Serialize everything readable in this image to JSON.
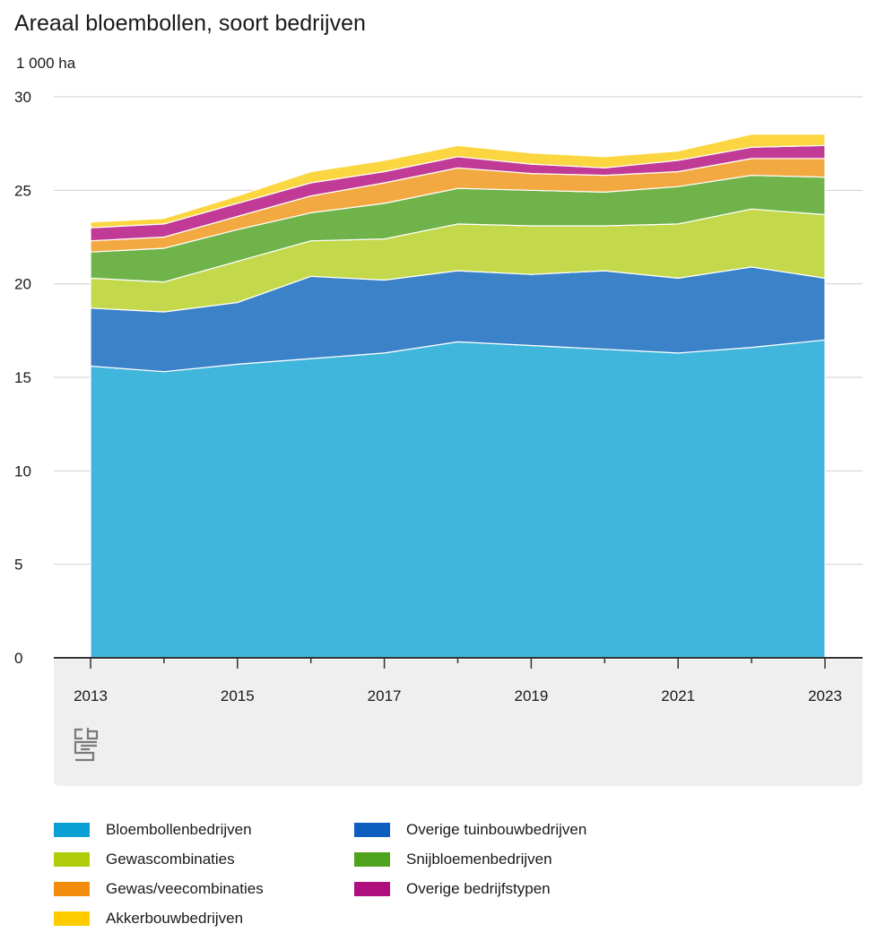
{
  "chart_data": {
    "type": "area",
    "stacked": true,
    "title": "Areaal bloembollen, soort bedrijven",
    "ylabel": "1 000 ha",
    "ylim": [
      0,
      30
    ],
    "yticks": [
      "0",
      "5",
      "10",
      "15",
      "20",
      "25",
      "30"
    ],
    "x": [
      2013,
      2014,
      2015,
      2016,
      2017,
      2018,
      2019,
      2020,
      2021,
      2022,
      2023
    ],
    "xticks": [
      "2013",
      "2015",
      "2017",
      "2019",
      "2021",
      "2023"
    ],
    "grid": true,
    "legend_position": "bottom",
    "series": [
      {
        "name": "Bloembollenbedrijven",
        "color": "#41b6dc",
        "legend_color": "#0ba0d4",
        "values": [
          15.6,
          15.3,
          15.7,
          16.0,
          16.3,
          16.9,
          16.7,
          16.5,
          16.3,
          16.6,
          17.0
        ]
      },
      {
        "name": "Overige tuinbouwbedrijven",
        "color": "#3b82c8",
        "legend_color": "#0d5fbf",
        "values": [
          3.1,
          3.2,
          3.3,
          4.4,
          3.9,
          3.8,
          3.8,
          4.2,
          4.0,
          4.3,
          3.3
        ]
      },
      {
        "name": "Gewascombinaties",
        "color": "#c3d84a",
        "legend_color": "#b0cc0b",
        "values": [
          1.6,
          1.6,
          2.2,
          1.9,
          2.2,
          2.5,
          2.6,
          2.4,
          2.9,
          3.1,
          3.4
        ]
      },
      {
        "name": "Snijbloemenbedrijven",
        "color": "#6fb34a",
        "legend_color": "#4ea21c",
        "values": [
          1.4,
          1.8,
          1.7,
          1.5,
          1.9,
          1.9,
          1.9,
          1.8,
          2.0,
          1.8,
          2.0
        ]
      },
      {
        "name": "Gewas/veecombinaties",
        "color": "#f3a941",
        "legend_color": "#f28c0f",
        "values": [
          0.6,
          0.6,
          0.7,
          0.9,
          1.1,
          1.1,
          0.9,
          0.9,
          0.8,
          0.9,
          1.0
        ]
      },
      {
        "name": "Overige bedrijfstypen",
        "color": "#c13b96",
        "legend_color": "#ae0f7d",
        "values": [
          0.7,
          0.7,
          0.7,
          0.7,
          0.6,
          0.6,
          0.5,
          0.4,
          0.6,
          0.6,
          0.7
        ]
      },
      {
        "name": "Akkerbouwbedrijven",
        "color": "#fcd640",
        "legend_color": "#ffcc00",
        "values": [
          0.3,
          0.3,
          0.4,
          0.6,
          0.6,
          0.6,
          0.6,
          0.6,
          0.5,
          0.7,
          0.6
        ]
      }
    ]
  }
}
